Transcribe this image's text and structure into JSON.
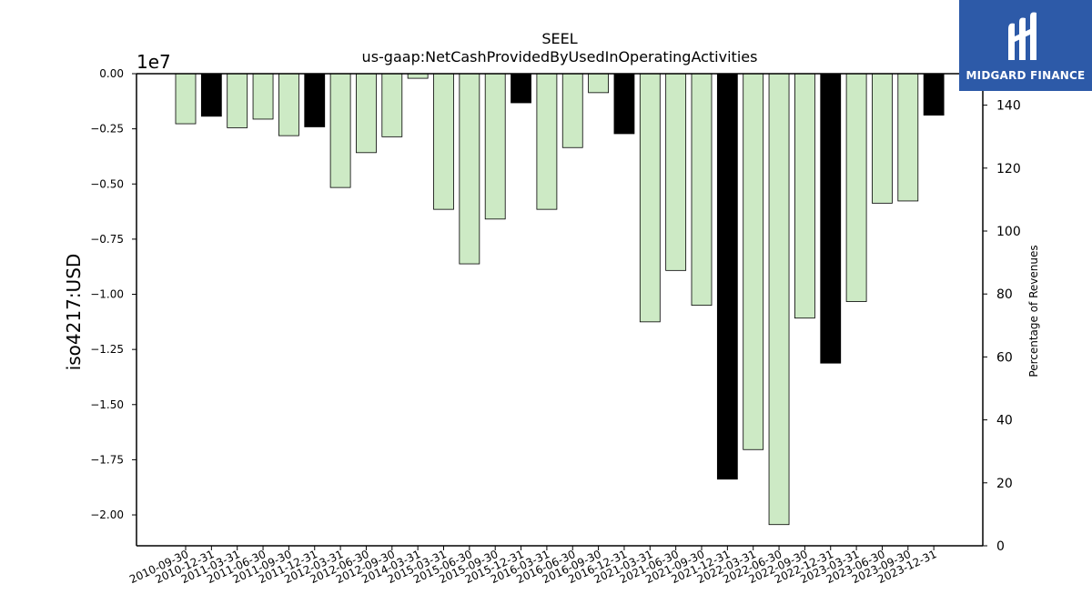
{
  "chart_data": {
    "type": "bar",
    "title": "SEEL",
    "subtitle": "us-gaap:NetCashProvidedByUsedInOperatingActivities",
    "ylabel": "iso4217:USD",
    "y_offset_label": "1e7",
    "y2label": "Percentage of Revenues",
    "ylim": [
      -21400000,
      0
    ],
    "y2lim": [
      0,
      150
    ],
    "yticks": [
      0,
      -2500000,
      -5000000,
      -7500000,
      -10000000,
      -12500000,
      -15000000,
      -17500000,
      -20000000
    ],
    "ytick_labels": [
      "0.00",
      "−0.25",
      "−0.50",
      "−0.75",
      "−1.00",
      "−1.25",
      "−1.50",
      "−1.75",
      "−2.00"
    ],
    "y2ticks": [
      0,
      20,
      40,
      60,
      80,
      100,
      120,
      140
    ],
    "y2tick_labels": [
      "0",
      "20",
      "40",
      "60",
      "80",
      "100",
      "120",
      "140"
    ],
    "categories": [
      "2010-09-30",
      "2010-12-31",
      "2011-03-31",
      "2011-06-30",
      "2011-09-30",
      "2011-12-31",
      "2012-03-31",
      "2012-06-30",
      "2012-09-30",
      "2014-03-31",
      "2015-03-31",
      "2015-06-30",
      "2015-09-30",
      "2015-12-31",
      "2016-03-31",
      "2016-06-30",
      "2016-09-30",
      "2016-12-31",
      "2021-03-31",
      "2021-06-30",
      "2021-09-30",
      "2021-12-31",
      "2022-03-31",
      "2022-06-30",
      "2022-09-30",
      "2022-12-31",
      "2023-03-31",
      "2023-06-30",
      "2023-09-30",
      "2023-12-31"
    ],
    "values": [
      -2270000,
      -1930000,
      -2450000,
      -2060000,
      -2810000,
      -2410000,
      -5160000,
      -3580000,
      -2860000,
      -210000,
      -6150000,
      -8620000,
      -6590000,
      -1320000,
      -6150000,
      -3350000,
      -860000,
      -2720000,
      -11250000,
      -8920000,
      -10500000,
      -18380000,
      -17040000,
      -20440000,
      -11080000,
      -13120000,
      -10330000,
      -5870000,
      -5770000,
      -1880000
    ],
    "highlighted": [
      false,
      true,
      false,
      false,
      false,
      true,
      false,
      false,
      false,
      false,
      false,
      false,
      false,
      true,
      false,
      false,
      false,
      true,
      false,
      false,
      false,
      true,
      false,
      false,
      false,
      true,
      false,
      false,
      false,
      true
    ],
    "colors": {
      "bar": "#cdeac5",
      "highlight": "#000000",
      "edge": "#000000"
    }
  },
  "logo": {
    "text": "MIDGARD FINANCE",
    "bg": "#2d5aa8"
  }
}
